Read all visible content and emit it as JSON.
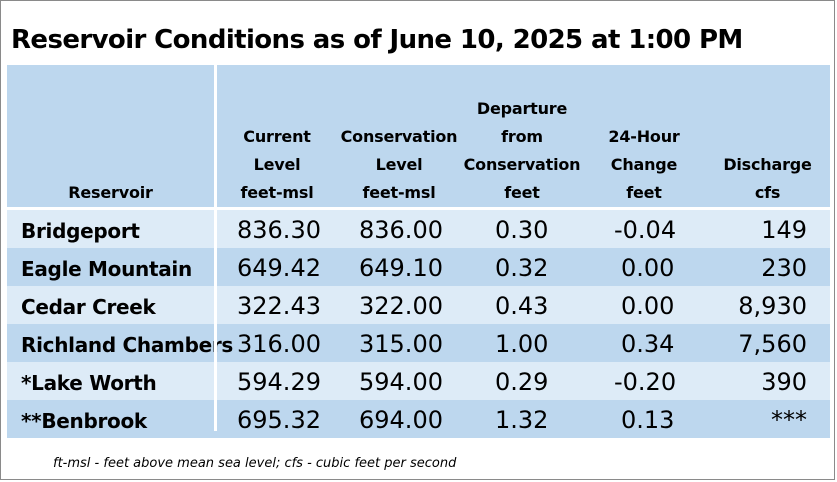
{
  "title": "Reservoir Conditions as of June 10, 2025 at 1:00 PM",
  "columns": [
    {
      "lines": [
        "Reservoir"
      ]
    },
    {
      "lines": [
        "Current",
        "Level",
        "feet-msl"
      ]
    },
    {
      "lines": [
        "Conservation",
        "Level",
        "feet-msl"
      ]
    },
    {
      "lines": [
        "Departure",
        "from",
        "Conservation",
        "feet"
      ]
    },
    {
      "lines": [
        "24-Hour",
        "Change",
        "feet"
      ]
    },
    {
      "lines": [
        "Discharge",
        "cfs"
      ]
    }
  ],
  "rows": [
    {
      "reservoir": "Bridgeport",
      "current": "836.30",
      "conservation": "836.00",
      "departure": "0.30",
      "change": "-0.04",
      "discharge": "149"
    },
    {
      "reservoir": "Eagle Mountain",
      "current": "649.42",
      "conservation": "649.10",
      "departure": "0.32",
      "change": "0.00",
      "discharge": "230"
    },
    {
      "reservoir": "Cedar Creek",
      "current": "322.43",
      "conservation": "322.00",
      "departure": "0.43",
      "change": "0.00",
      "discharge": "8,930"
    },
    {
      "reservoir": "Richland Chambers",
      "current": "316.00",
      "conservation": "315.00",
      "departure": "1.00",
      "change": "0.34",
      "discharge": "7,560"
    },
    {
      "reservoir": "*Lake Worth",
      "current": "594.29",
      "conservation": "594.00",
      "departure": "0.29",
      "change": "-0.20",
      "discharge": "390"
    },
    {
      "reservoir": "**Benbrook",
      "current": "695.32",
      "conservation": "694.00",
      "departure": "1.32",
      "change": "0.13",
      "discharge": "***"
    }
  ],
  "footnote": "ft-msl - feet above mean sea level; cfs - cubic feet per second",
  "colors": {
    "header_bg": "#bdd7ee",
    "row_light": "#ddebf7",
    "row_dark": "#bdd7ee"
  }
}
